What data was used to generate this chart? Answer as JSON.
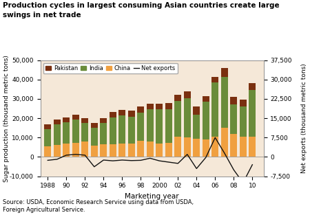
{
  "title_line1": "Production cycles in largest consuming Asian countries create large",
  "title_line2": "swings in net trade",
  "ylabel_left": "Sugar production (thousand metric tons)",
  "ylabel_right": "Net exports (thousand metric tons)",
  "xlabel": "Marketing year",
  "source": "Source: USDA, Economic Research Service using data from USDA,\nForeign Agricultural Service.",
  "years": [
    1988,
    1989,
    1990,
    1991,
    1992,
    1993,
    1994,
    1995,
    1996,
    1997,
    1998,
    1999,
    2000,
    2001,
    2002,
    2003,
    2004,
    2005,
    2006,
    2007,
    2008,
    2009,
    2010
  ],
  "china": [
    5500,
    6200,
    6800,
    7300,
    8000,
    6000,
    6400,
    6500,
    7000,
    6800,
    8500,
    8000,
    7000,
    7200,
    10500,
    10000,
    9500,
    9200,
    10500,
    15000,
    12000,
    10500,
    10500
  ],
  "india": [
    9000,
    10500,
    11000,
    12000,
    9500,
    9000,
    11000,
    14000,
    14500,
    14000,
    14500,
    16500,
    17500,
    17500,
    18500,
    20500,
    12500,
    19500,
    28000,
    26500,
    15000,
    15500,
    24000
  ],
  "pakistan": [
    2500,
    2800,
    2700,
    2500,
    2500,
    2500,
    2600,
    2700,
    2800,
    3000,
    3200,
    3100,
    2900,
    3000,
    3200,
    3500,
    4000,
    2800,
    3000,
    4500,
    4000,
    3500,
    3500
  ],
  "net_exports": [
    -1300,
    -900,
    700,
    1000,
    700,
    -3800,
    -1200,
    -1500,
    -1200,
    -1400,
    -1300,
    -500,
    -1500,
    -2000,
    -2500,
    1000,
    -4500,
    -200,
    7500,
    1500,
    -5000,
    -10000,
    -3000
  ],
  "color_china": "#f0a040",
  "color_india": "#6a8c3a",
  "color_pakistan": "#7a3010",
  "color_net_exports": "#111111",
  "background_color": "#f5e8d8",
  "ylim_left": [
    -10000,
    50000
  ],
  "ylim_right": [
    -7500,
    37500
  ],
  "yticks_left": [
    -10000,
    0,
    10000,
    20000,
    30000,
    40000,
    50000
  ],
  "ytick_labels_left": [
    "-10,000",
    "0",
    "10,000",
    "20,000",
    "30,000",
    "40,000",
    "50,000"
  ],
  "yticks_right": [
    -7500,
    0,
    7500,
    15000,
    22500,
    30000,
    37500
  ],
  "ytick_labels_right": [
    "-7,500",
    "0",
    "7,500",
    "15,000",
    "22,500",
    "30,000",
    "37,500"
  ],
  "xtick_labels": [
    "1988",
    "90",
    "92",
    "94",
    "96",
    "98",
    "2000",
    "02",
    "04",
    "06",
    "08",
    "10"
  ],
  "xtick_positions": [
    1988,
    1990,
    1992,
    1994,
    1996,
    1998,
    2000,
    2002,
    2004,
    2006,
    2008,
    2010
  ],
  "bar_width": 0.75
}
